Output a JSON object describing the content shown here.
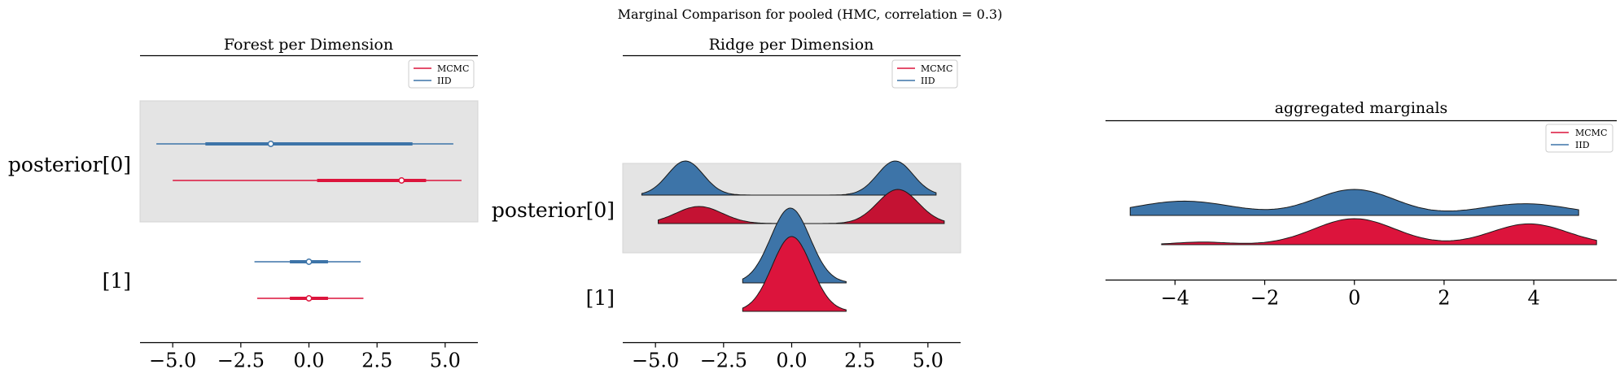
{
  "figure": {
    "suptitle": "Marginal Comparison for pooled (HMC, correlation = 0.3)"
  },
  "colors": {
    "MCMC": "#dc143c",
    "IID": "#3d74a8",
    "MCMC_ridge_edge": "#c41233",
    "band": "#e4e4e4"
  },
  "chart_data": [
    {
      "type": "forest",
      "title": "Forest per Dimension",
      "legend": {
        "placement": "top-right",
        "entries": [
          "MCMC",
          "IID"
        ]
      },
      "y_labels": [
        "posterior[0]",
        "[1]"
      ],
      "xlim": [
        -6.2,
        6.2
      ],
      "x_ticks": [
        -5.0,
        -2.5,
        0.0,
        2.5,
        5.0
      ],
      "x_tick_labels": [
        "−5.0",
        "−2.5",
        "0.0",
        "2.5",
        "5.0"
      ],
      "rows": [
        {
          "label": "posterior[0]",
          "shaded": true,
          "series": [
            {
              "name": "IID",
              "hdi94": [
                -5.6,
                5.3
              ],
              "hdi50": [
                -3.8,
                3.8
              ],
              "mean": -1.4
            },
            {
              "name": "MCMC",
              "hdi94": [
                -5.0,
                5.6
              ],
              "hdi50": [
                0.3,
                4.3
              ],
              "mean": 3.4
            }
          ]
        },
        {
          "label": "[1]",
          "shaded": false,
          "series": [
            {
              "name": "IID",
              "hdi94": [
                -2.0,
                1.9
              ],
              "hdi50": [
                -0.7,
                0.7
              ],
              "mean": 0.0
            },
            {
              "name": "MCMC",
              "hdi94": [
                -1.9,
                2.0
              ],
              "hdi50": [
                -0.7,
                0.7
              ],
              "mean": 0.0
            }
          ]
        }
      ]
    },
    {
      "type": "ridge",
      "title": "Ridge per Dimension",
      "legend": {
        "placement": "top-right",
        "entries": [
          "MCMC",
          "IID"
        ]
      },
      "y_labels": [
        "posterior[0]",
        "[1]"
      ],
      "xlim": [
        -6.2,
        6.2
      ],
      "x_ticks": [
        -5.0,
        -2.5,
        0.0,
        2.5,
        5.0
      ],
      "x_tick_labels": [
        "−5.0",
        "−2.5",
        "0.0",
        "2.5",
        "5.0"
      ],
      "rows": [
        {
          "label": "posterior[0]",
          "shaded": true,
          "series": [
            {
              "name": "IID",
              "range": [
                -5.5,
                5.3
              ],
              "modes": [
                [
                  -3.9,
                  1.0,
                  0.65
                ],
                [
                  3.8,
                  1.0,
                  0.65
                ]
              ]
            },
            {
              "name": "MCMC",
              "range": [
                -4.9,
                5.6
              ],
              "modes": [
                [
                  -3.4,
                  0.5,
                  0.85
                ],
                [
                  3.9,
                  1.0,
                  0.75
                ]
              ]
            }
          ]
        },
        {
          "label": "[1]",
          "shaded": false,
          "series": [
            {
              "name": "IID",
              "range": [
                -1.8,
                2.0
              ],
              "modes": [
                [
                  -0.05,
                  1.0,
                  0.72
                ]
              ]
            },
            {
              "name": "MCMC",
              "range": [
                -1.8,
                2.0
              ],
              "modes": [
                [
                  0.0,
                  1.0,
                  0.72
                ]
              ]
            }
          ]
        }
      ]
    },
    {
      "type": "ridge",
      "title": "aggregated marginals",
      "legend": {
        "placement": "top-right",
        "entries": [
          "MCMC",
          "IID"
        ]
      },
      "y_labels": [],
      "xlim": [
        -5.55,
        5.85
      ],
      "x_ticks": [
        -4,
        -2,
        0,
        2,
        4
      ],
      "x_tick_labels": [
        "−4",
        "−2",
        "0",
        "2",
        "4"
      ],
      "series": [
        {
          "name": "IID",
          "range": [
            -5.0,
            5.0
          ],
          "modes": [
            [
              -3.8,
              0.55,
              1.1
            ],
            [
              0.0,
              1.0,
              0.9
            ],
            [
              3.8,
              0.45,
              1.0
            ]
          ]
        },
        {
          "name": "MCMC",
          "range": [
            -4.3,
            5.4
          ],
          "modes": [
            [
              -3.4,
              0.1,
              0.6
            ],
            [
              0.0,
              1.0,
              0.9
            ],
            [
              3.9,
              0.8,
              0.85
            ]
          ]
        }
      ]
    }
  ]
}
